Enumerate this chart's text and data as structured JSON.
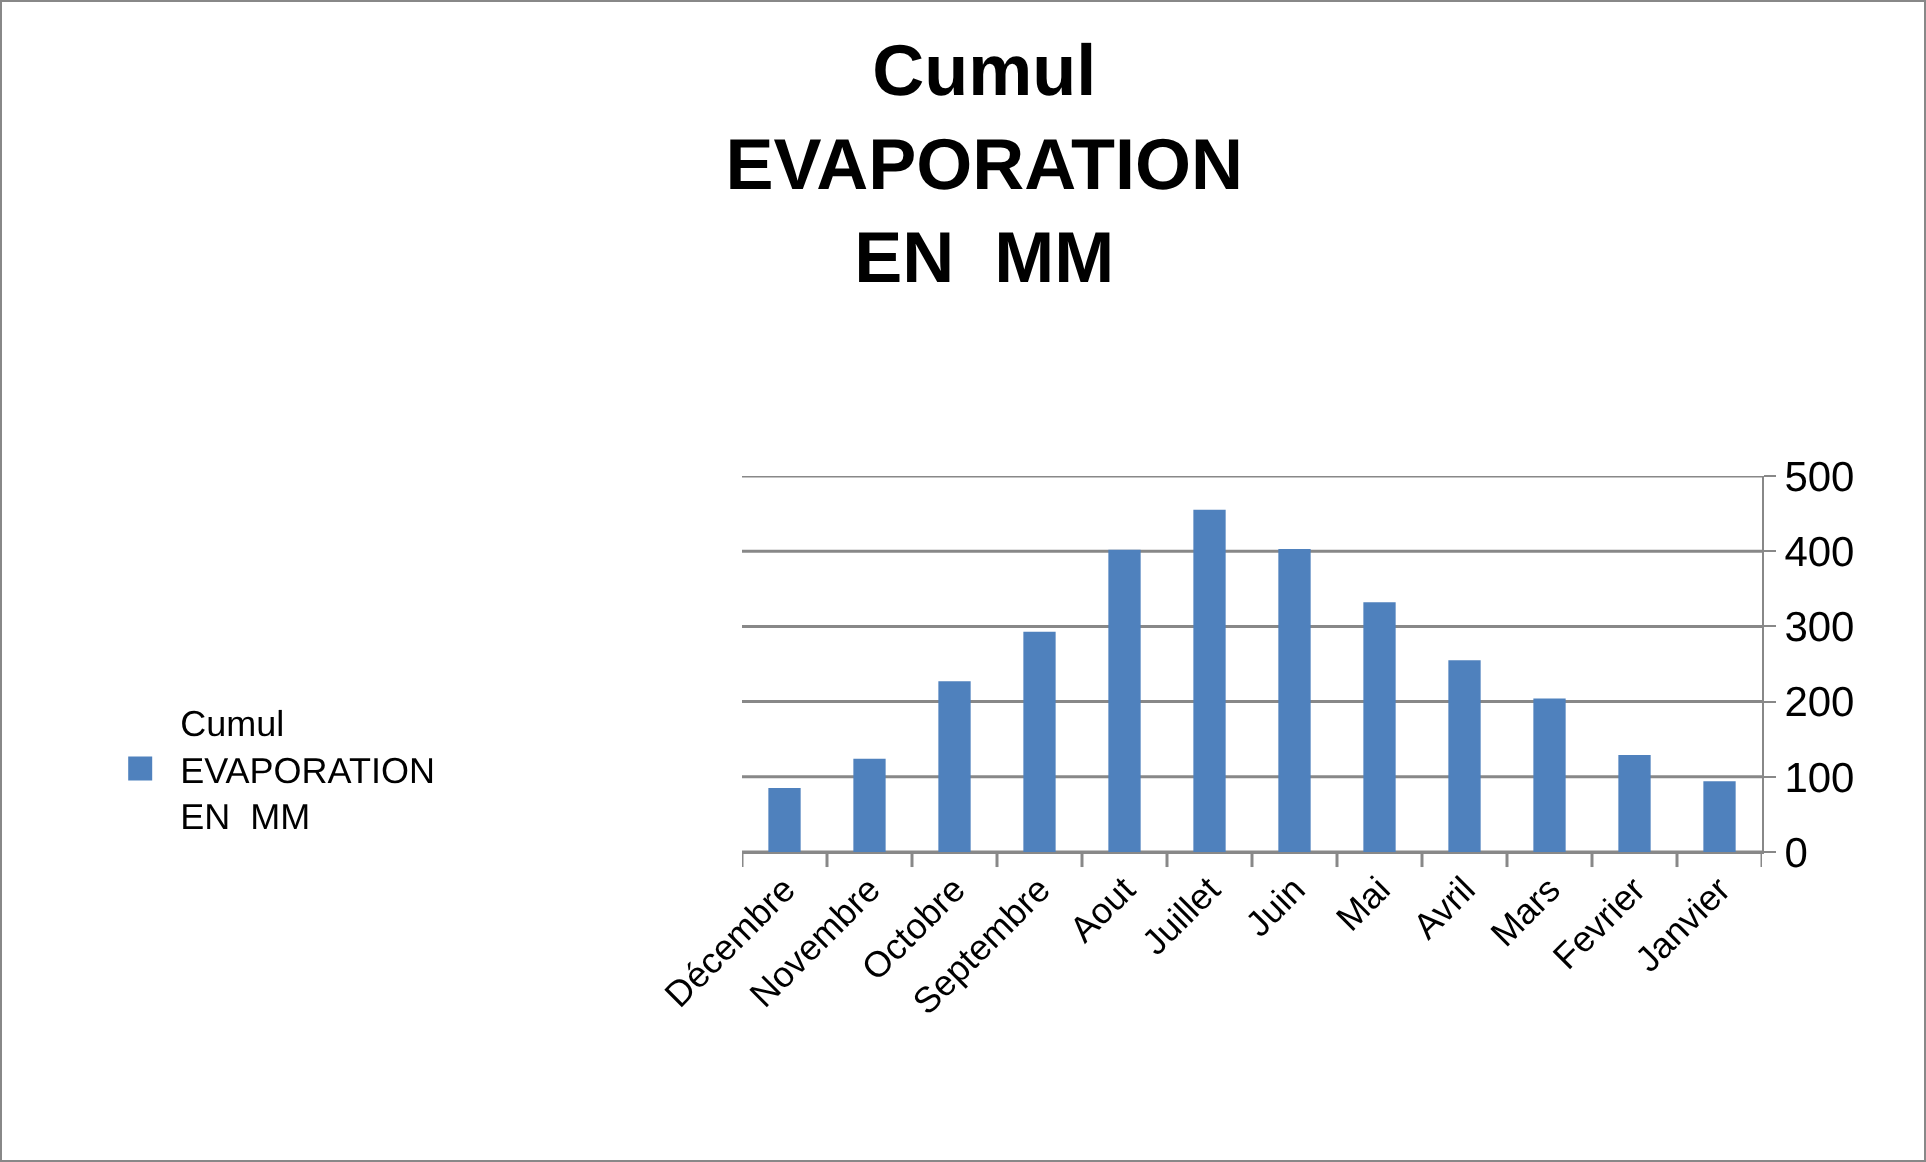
{
  "chart_data": {
    "type": "bar",
    "title": "Cumul\nEVAPORATION\nEN  MM",
    "categories": [
      "Décembre",
      "Novembre",
      "Octobre",
      "Septembre",
      "Aout",
      "Juillet",
      "Juin",
      "Mai",
      "Avril",
      "Mars",
      "Fevrier",
      "Janvier"
    ],
    "series": [
      {
        "name": "Cumul\nEVAPORATION\nEN  MM",
        "color": "#4f81bd",
        "values": [
          85,
          124,
          227,
          293,
          402,
          455,
          403,
          332,
          255,
          204,
          129,
          94
        ]
      }
    ],
    "ylim": [
      0,
      500
    ],
    "yticks": [
      0,
      100,
      200,
      300,
      400,
      500
    ],
    "grid": "y",
    "legend": "left"
  }
}
